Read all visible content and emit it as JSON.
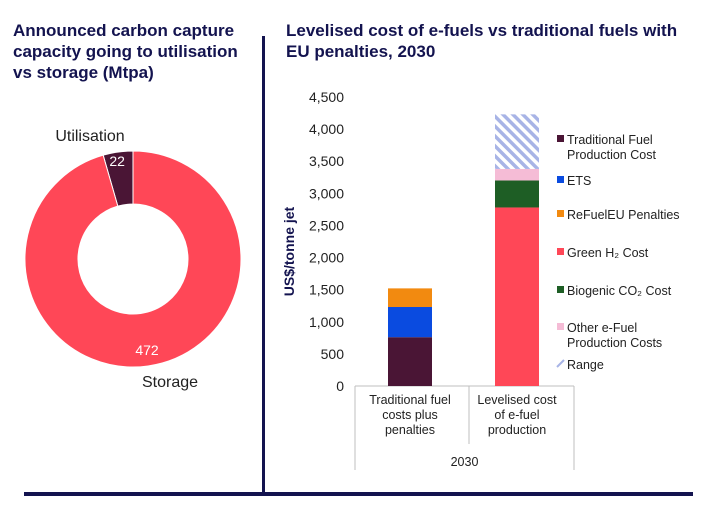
{
  "left_panel": {
    "title": "Announced carbon capture capacity going to utilisation vs storage (Mtpa)"
  },
  "right_panel": {
    "title": "Levelised cost of e-fuels vs traditional fuels with EU penalties, 2030"
  },
  "colors": {
    "navy": "#13134f",
    "storage": "#ff4757",
    "utilisation": "#4a1535",
    "traditional_fuel": "#4a1535",
    "ets": "#0a4be0",
    "refueleu": "#f28a10",
    "green_h2": "#ff4757",
    "biogenic_co2": "#1e5e25",
    "other_efuel": "#f5bcd6",
    "range": "#a8b4e6"
  },
  "chart_data": [
    {
      "type": "pie",
      "title": "Announced carbon capture capacity going to utilisation vs storage (Mtpa)",
      "slices": [
        {
          "label": "Utilisation",
          "value": 22,
          "value_label": "22",
          "color": "#4a1535"
        },
        {
          "label": "Storage",
          "value": 472,
          "value_label": "472",
          "color": "#ff4757"
        }
      ],
      "donut": true
    },
    {
      "type": "bar",
      "stacked": true,
      "title": "Levelised cost of e-fuels vs traditional fuels with EU penalties, 2030",
      "ylabel": "US$/tonne jet",
      "xlabel": "2030",
      "ylim": [
        0,
        4500
      ],
      "yticks": [
        0,
        500,
        1000,
        1500,
        2000,
        2500,
        3000,
        3500,
        4000,
        4500
      ],
      "ytick_labels": [
        "0",
        "500",
        "1,000",
        "1,500",
        "2,000",
        "2,500",
        "3,000",
        "3,500",
        "4,000",
        "4,500"
      ],
      "categories": [
        [
          "Traditional fuel",
          "costs plus",
          "penalties"
        ],
        [
          "Levelised cost",
          "of e-fuel",
          "production"
        ]
      ],
      "series": [
        {
          "name": "Traditional Fuel Production Cost",
          "legend_lines": [
            "Traditional Fuel",
            "Production Cost"
          ],
          "color": "#4a1535",
          "values": [
            760,
            0
          ]
        },
        {
          "name": "ETS",
          "legend_lines": [
            "ETS"
          ],
          "color": "#0a4be0",
          "values": [
            470,
            0
          ]
        },
        {
          "name": "ReFuelEU Penalties",
          "legend_lines": [
            "ReFuelEU Penalties"
          ],
          "color": "#f28a10",
          "values": [
            290,
            0
          ]
        },
        {
          "name": "Green H₂ Cost",
          "legend_lines": [
            "Green H₂ Cost"
          ],
          "color": "#ff4757",
          "values": [
            0,
            2780
          ]
        },
        {
          "name": "Biogenic CO₂ Cost",
          "legend_lines": [
            "Biogenic CO₂ Cost"
          ],
          "color": "#1e5e25",
          "values": [
            0,
            420
          ]
        },
        {
          "name": "Other e-Fuel Production Costs",
          "legend_lines": [
            "Other e-Fuel",
            "Production Costs"
          ],
          "color": "#f5bcd6",
          "values": [
            0,
            180
          ]
        },
        {
          "name": "Range",
          "legend_lines": [
            "Range"
          ],
          "color": "#a8b4e6",
          "pattern": "hatch",
          "values": [
            0,
            850
          ]
        }
      ],
      "legend_position": "right"
    }
  ]
}
